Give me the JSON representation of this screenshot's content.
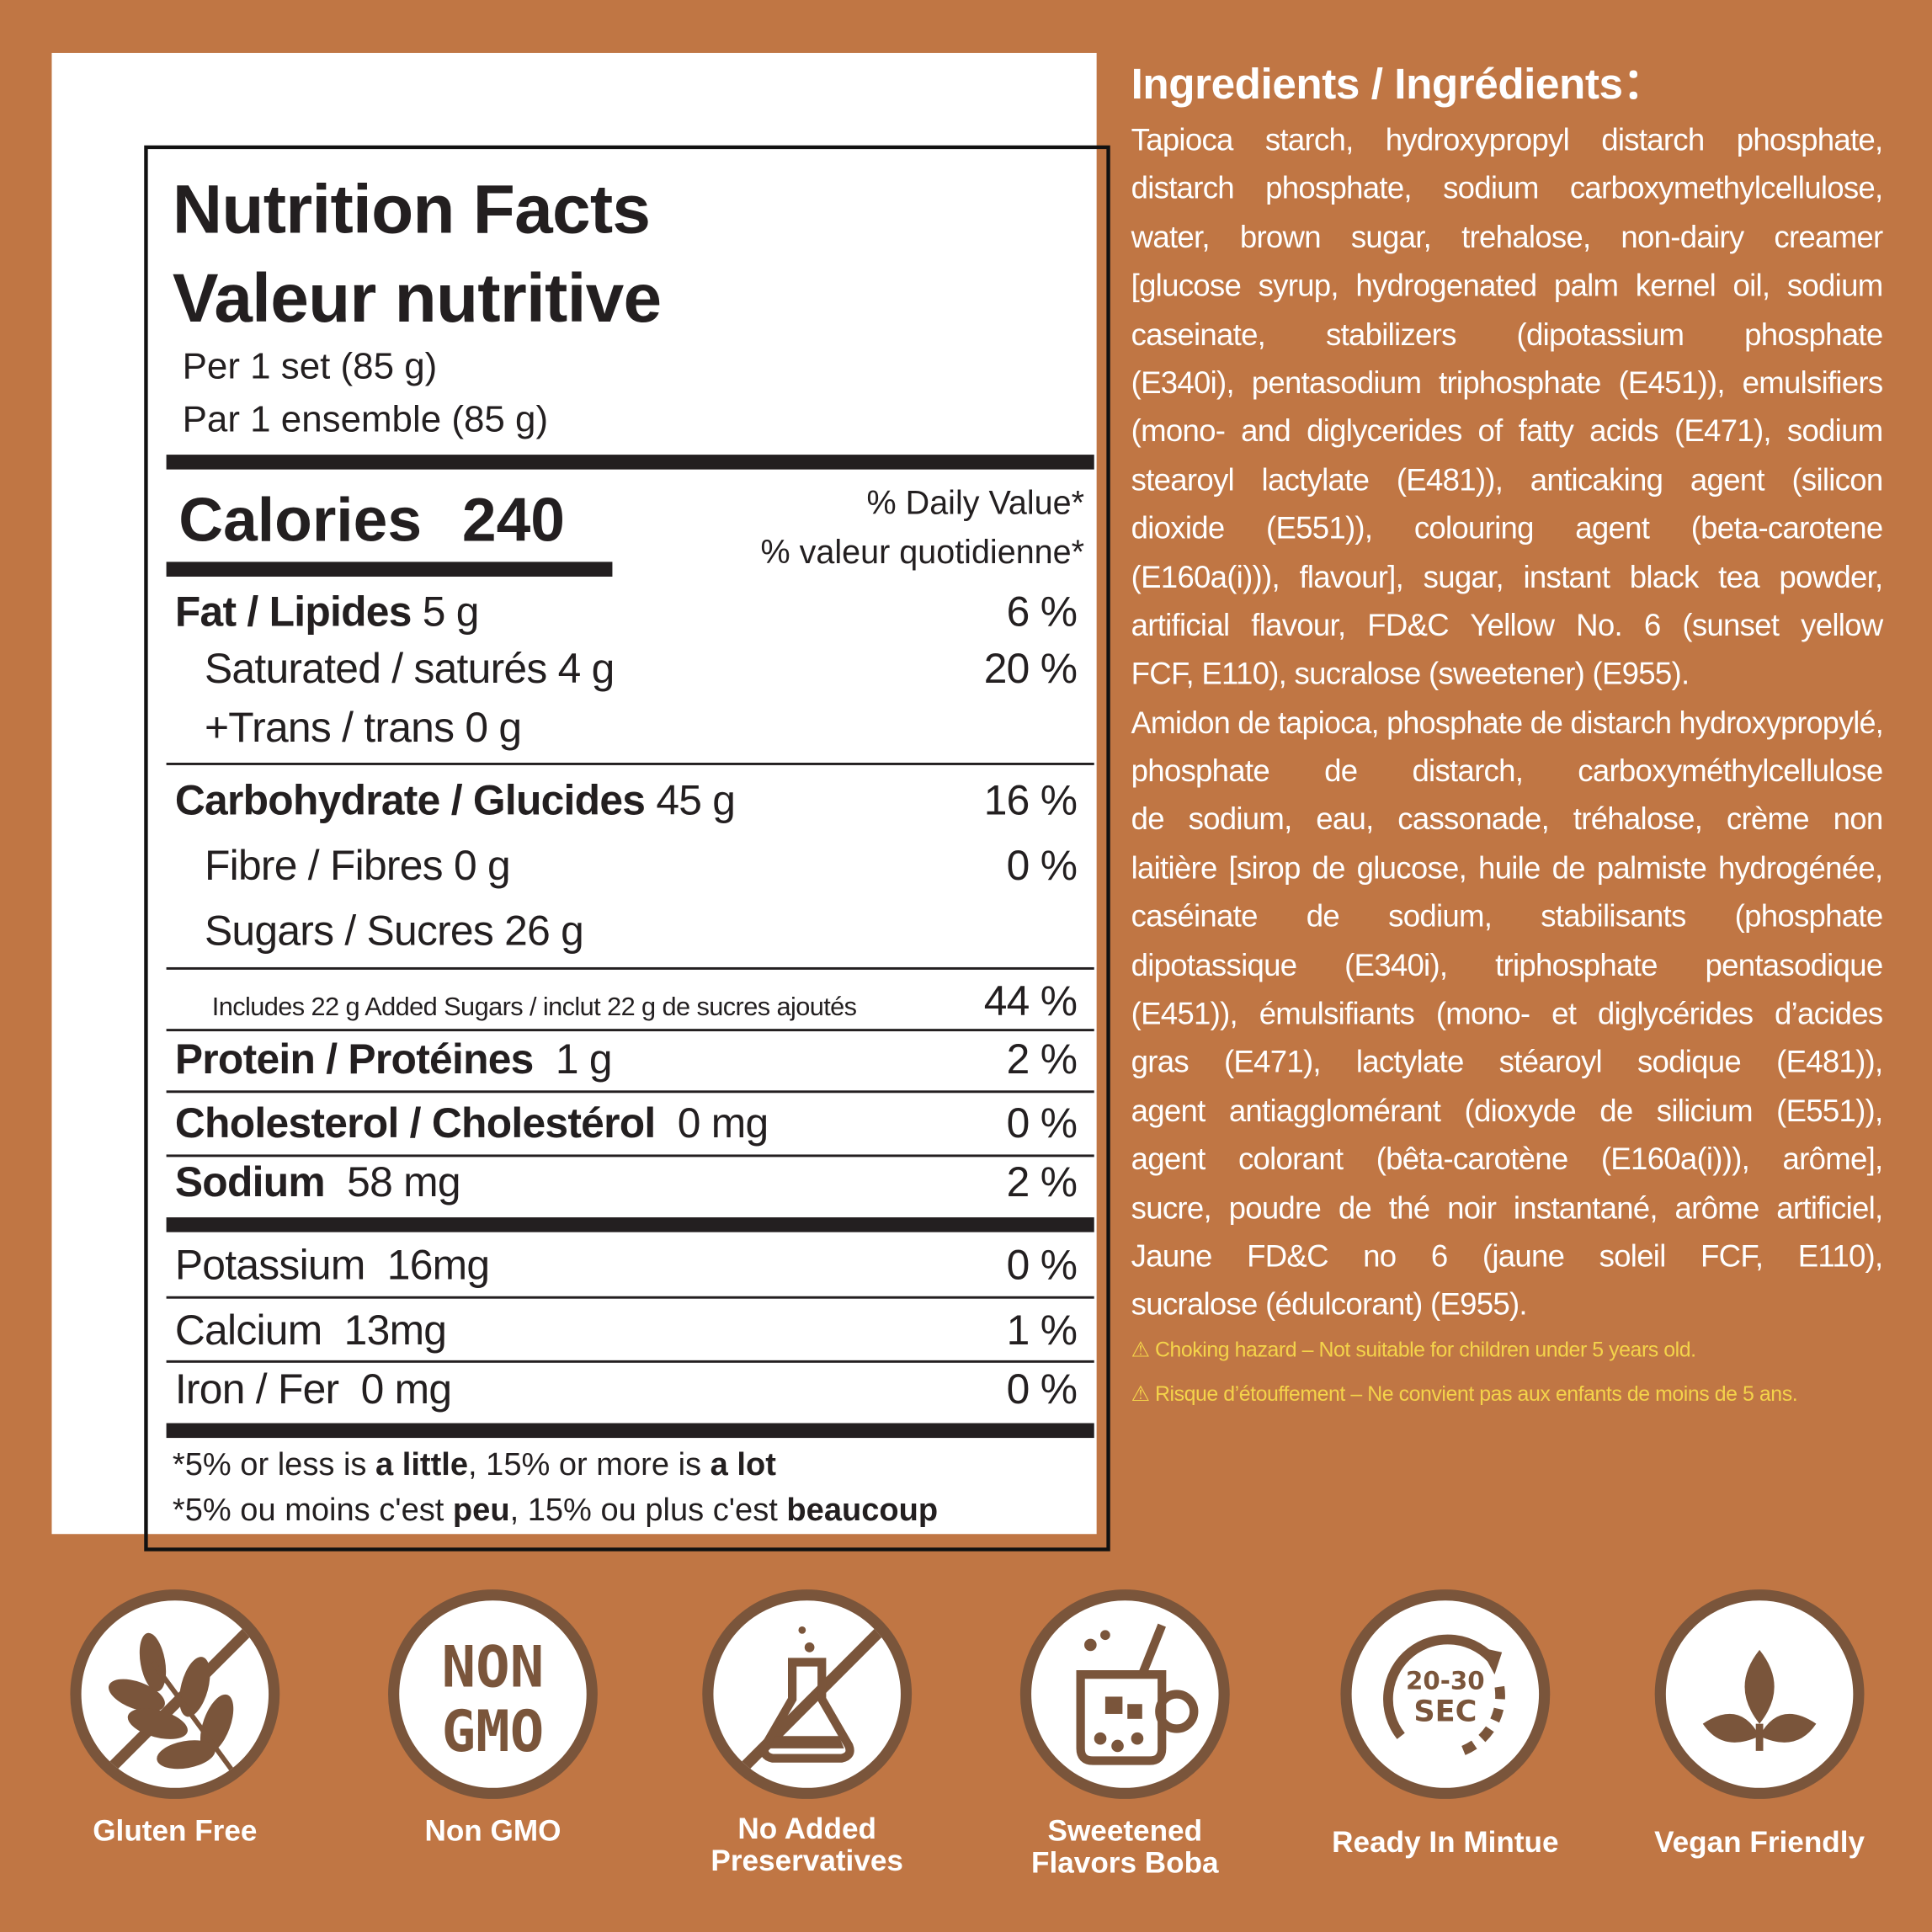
{
  "nutrition": {
    "title_en": "Nutrition Facts",
    "title_fr": "Valeur nutritive",
    "serving_en": "Per 1 set (85 g)",
    "serving_fr": "Par 1 ensemble (85 g)",
    "calories_label": "Calories",
    "calories_value": "240",
    "dv_en": "% Daily Value*",
    "dv_fr": "% valeur quotidienne*",
    "rows": [
      {
        "label": "Fat / Lipides",
        "amount": "5 g",
        "dv": "6 %"
      },
      {
        "label": "Saturated / saturés",
        "amount": "4 g",
        "dv": "20 %"
      },
      {
        "label": "+Trans / trans",
        "amount": "0 g",
        "dv": ""
      },
      {
        "label": "Carbohydrate / Glucides",
        "amount": "45 g",
        "dv": "16 %"
      },
      {
        "label": "Fibre / Fibres",
        "amount": "0 g",
        "dv": "0 %"
      },
      {
        "label": "Sugars / Sucres",
        "amount": "26 g",
        "dv": ""
      },
      {
        "label": "Includes 22 g Added Sugars / inclut 22 g de sucres ajoutés",
        "amount": "",
        "dv": "44 %"
      },
      {
        "label": "Protein / Protéines",
        "amount": "1 g",
        "dv": "2 %"
      },
      {
        "label": "Cholesterol / Cholestérol",
        "amount": "0 mg",
        "dv": "0 %"
      },
      {
        "label": "Sodium",
        "amount": "58 mg",
        "dv": "2 %"
      },
      {
        "label": "Potassium",
        "amount": "16mg",
        "dv": "0 %"
      },
      {
        "label": "Calcium",
        "amount": "13mg",
        "dv": "1 %"
      },
      {
        "label": "Iron / Fer",
        "amount": "0 mg",
        "dv": "0 %"
      }
    ],
    "footnote_en": {
      "a": "*5% or less is ",
      "b": "a little",
      "c": ",  15% or more is ",
      "d": "a lot"
    },
    "footnote_fr": {
      "a": "*5% ou moins c'est ",
      "b": "peu",
      "c": ", 15% ou plus c'est ",
      "d": "beaucoup"
    }
  },
  "ingredients": {
    "title": "Ingredients / Ingrédients：",
    "en": [
      "Tapioca starch, hydroxypropyl distarch phosphate,",
      "distarch phosphate, sodium carboxymethylcellulose,",
      "water, brown sugar, trehalose, non-dairy creamer",
      "[glucose syrup, hydrogenated palm kernel oil, sodium",
      "caseinate, stabilizers (dipotassium phosphate",
      "(E340i), pentasodium triphosphate (E451)), emulsifiers",
      "(mono- and diglycerides of fatty acids (E471), sodium",
      "stearoyl lactylate (E481)), anticaking agent (silicon",
      "dioxide (E551)), colouring agent (beta-carotene",
      "(E160a(i))), flavour], sugar, instant black tea powder,",
      "artificial flavour, FD&C Yellow No. 6 (sunset yellow",
      "FCF, E110), sucralose (sweetener) (E955)."
    ],
    "fr": [
      "Amidon de tapioca, phosphate de distarch hydroxypropylé,",
      "phosphate de distarch, carboxyméthylcellulose",
      "de sodium, eau, cassonade, tréhalose, crème non",
      "laitière [sirop de glucose, huile de palmiste hydrogénée,",
      "caséinate de sodium, stabilisants (phosphate",
      "dipotassique (E340i), triphosphate pentasodique",
      "(E451)), émulsifiants (mono- et diglycérides d’acides",
      "gras (E471), lactylate stéaroyl sodique (E481)),",
      "agent antiagglomérant (dioxyde de silicium (E551)),",
      "agent colorant (bêta-carotène (E160a(i))), arôme],",
      "sucre, poudre de thé noir instantané, arôme artificiel,",
      "Jaune FD&C no 6 (jaune soleil FCF, E110),",
      "sucralose (édulcorant) (E955)."
    ]
  },
  "warnings": {
    "icon": "warning-triangle-icon",
    "en": "⚠ Choking hazard – Not suitable for children under 5 years old.",
    "fr": "⚠ Risque d’étouffement – Ne convient pas aux enfants de moins de 5 ans."
  },
  "badges": [
    {
      "icon": "wheat-crossed-icon",
      "label": "Gluten Free"
    },
    {
      "icon": "non-gmo-icon",
      "label": "Non GMO",
      "icon_text": [
        "NON",
        "GMO"
      ]
    },
    {
      "icon": "flask-crossed-icon",
      "label": "No Added\nPreservatives"
    },
    {
      "icon": "boba-mug-icon",
      "label": "Sweetened\nFlavors Boba"
    },
    {
      "icon": "timer-icon",
      "label": "Ready In Mintue",
      "icon_text": [
        "20-30",
        "SEC"
      ]
    },
    {
      "icon": "leaves-icon",
      "label": "Vegan Friendly"
    }
  ],
  "colors": {
    "background": "#c07644",
    "icon_brown": "#7a553b",
    "warning": "#f4d34a"
  }
}
